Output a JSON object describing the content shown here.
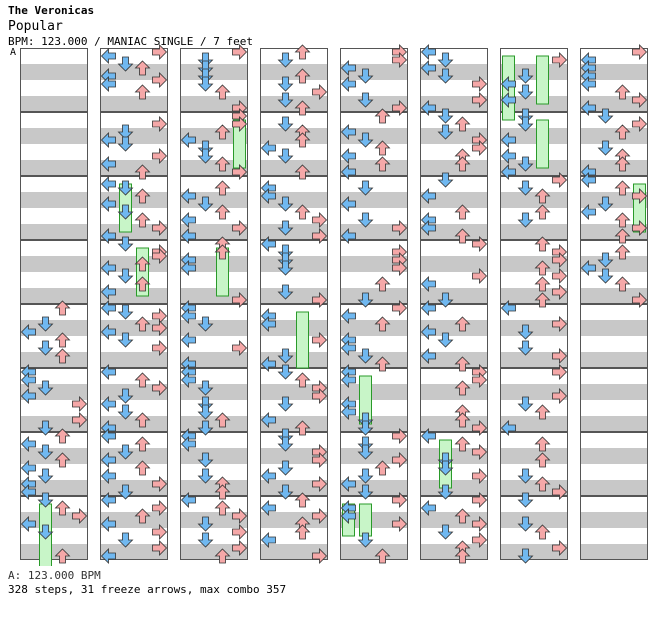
{
  "header": {
    "artist": "The Veronicas",
    "title": "Popular",
    "meta": "BPM: 123.000 / MANIAC SINGLE / 7 feet",
    "bpm_marker": "A"
  },
  "footer": {
    "bpm_line": "A: 123.000 BPM",
    "stats": "328 steps, 31 freeze arrows, max combo 357"
  },
  "colors": {
    "left_down": "#70b8f0",
    "up_right": "#f5a8a8",
    "shock": "#f0b0f0",
    "freeze_body": "#c8f5c8",
    "freeze_border": "#2a9a2a",
    "stripe": "#c8c8c8"
  },
  "chart_data": {
    "type": "stepchart",
    "lanes": [
      "left",
      "down",
      "up",
      "right"
    ],
    "columns": 8,
    "measures_per_column": 8,
    "rows_per_measure": 8,
    "notes": [
      {
        "column": 1,
        "measure": 0,
        "rows": [
          [
            0,
            "R"
          ],
          [
            0.5,
            "L"
          ],
          [
            1.5,
            "D"
          ],
          [
            2,
            "U"
          ],
          [
            3,
            "L"
          ],
          [
            3.5,
            "R"
          ],
          [
            4,
            "L"
          ],
          [
            5,
            "U"
          ]
        ]
      },
      {
        "column": 1,
        "measure": 1,
        "rows": [
          [
            1,
            "R"
          ],
          [
            2,
            "D"
          ],
          [
            3,
            "L"
          ],
          [
            3.5,
            "D"
          ],
          [
            5,
            "R"
          ],
          [
            6,
            "L"
          ],
          [
            7,
            "U"
          ]
        ]
      },
      {
        "column": 1,
        "measure": 2,
        "rows": [
          [
            0.5,
            "L"
          ],
          [
            1,
            "D"
          ],
          [
            2,
            "U"
          ],
          [
            3,
            "L"
          ],
          [
            4,
            "D"
          ],
          [
            5,
            "U"
          ],
          [
            6,
            "R"
          ],
          [
            7,
            "L"
          ]
        ]
      },
      {
        "column": 1,
        "measure": 3,
        "rows": [
          [
            0,
            "D"
          ],
          [
            1,
            "R"
          ],
          [
            1.5,
            "R"
          ],
          [
            2.5,
            "X"
          ],
          [
            3,
            "L"
          ],
          [
            4,
            "D"
          ],
          [
            5,
            "U"
          ],
          [
            6,
            "L"
          ]
        ]
      },
      {
        "column": 1,
        "measure": 4,
        "rows": [
          [
            0,
            "L"
          ],
          [
            0.5,
            "D"
          ],
          [
            1,
            "R"
          ],
          [
            2,
            "U"
          ],
          [
            2.5,
            "R"
          ],
          [
            3,
            "L"
          ],
          [
            4,
            "D"
          ],
          [
            5,
            "R"
          ]
        ]
      },
      {
        "column": 1,
        "measure": 5,
        "rows": [
          [
            0,
            "L"
          ],
          [
            1,
            "U"
          ],
          [
            2,
            "R"
          ],
          [
            3,
            "D"
          ],
          [
            4,
            "L"
          ],
          [
            5,
            "D"
          ],
          [
            6,
            "U"
          ],
          [
            7,
            "L"
          ]
        ]
      },
      {
        "column": 1,
        "measure": 6,
        "rows": [
          [
            0,
            "L"
          ],
          [
            1,
            "U"
          ],
          [
            2,
            "D"
          ],
          [
            3,
            "L"
          ],
          [
            4,
            "U"
          ],
          [
            5,
            "L"
          ],
          [
            6,
            "R"
          ],
          [
            7,
            "D"
          ]
        ]
      },
      {
        "column": 1,
        "measure": 7,
        "rows": [
          [
            0,
            "L"
          ],
          [
            1,
            "R"
          ],
          [
            2,
            "U"
          ],
          [
            3,
            "L"
          ],
          [
            4,
            "R"
          ],
          [
            5,
            "D"
          ],
          [
            6,
            "R"
          ],
          [
            7,
            "L"
          ]
        ]
      }
    ]
  }
}
